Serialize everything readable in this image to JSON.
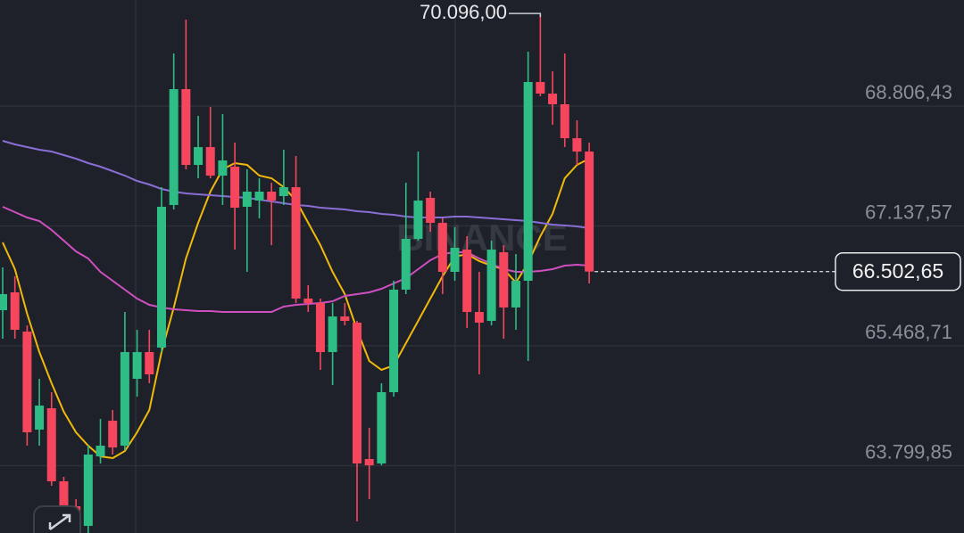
{
  "chart_data": {
    "type": "candlestick",
    "watermark": "BINANCE",
    "up_color": "#2ebd85",
    "down_color": "#f6465d",
    "grid": true,
    "ylim": [
      62863,
      70284
    ],
    "yticks": [
      {
        "value": 68806.43,
        "label": "68.806,43"
      },
      {
        "value": 67137.57,
        "label": "67.137,57"
      },
      {
        "value": 65468.71,
        "label": "65.468,71"
      },
      {
        "value": 63799.85,
        "label": "63.799,85"
      }
    ],
    "max_label": {
      "value": 70096,
      "label": "70.096,00"
    },
    "last_price": {
      "value": 66502.65,
      "label": "66.502,65"
    },
    "open": [
      65965,
      66214,
      65667,
      64302,
      64600,
      63583,
      63235,
      62962,
      63930,
      64426,
      64079,
      65010,
      65382,
      65444,
      67430,
      69043,
      67988,
      68236,
      67839,
      67963,
      67405,
      67492,
      67616,
      67554,
      67678,
      66127,
      66065,
      65382,
      65878,
      65792,
      63893,
      63831,
      64824,
      66251,
      66958,
      67529,
      67181,
      66499,
      66809,
      65940,
      65816,
      66772,
      66003,
      66375,
      69142,
      68981,
      68832,
      68360,
      68174
    ],
    "high": [
      66561,
      66437,
      65754,
      65010,
      64824,
      63645,
      63334,
      64079,
      64451,
      64575,
      65940,
      65692,
      65692,
      67678,
      69539,
      70011,
      68671,
      68795,
      68696,
      68298,
      67926,
      67802,
      67740,
      68199,
      68112,
      66313,
      66127,
      66065,
      66065,
      65816,
      64327,
      64948,
      66375,
      67740,
      68174,
      67616,
      67244,
      67119,
      66995,
      66499,
      66933,
      66871,
      66747,
      69564,
      70096,
      69291,
      69539,
      68609,
      68298
    ],
    "low": [
      65568,
      65568,
      64079,
      64079,
      63521,
      62863,
      62863,
      62863,
      63831,
      63955,
      64017,
      64762,
      64948,
      65382,
      67368,
      67926,
      67802,
      67802,
      67430,
      66809,
      66499,
      67244,
      66871,
      67430,
      66065,
      65940,
      65134,
      64923,
      65754,
      63024,
      63334,
      63806,
      64762,
      66189,
      66933,
      67057,
      66189,
      66375,
      65717,
      65072,
      65754,
      65568,
      65692,
      65258,
      68944,
      68547,
      68236,
      67988,
      66338
    ],
    "close": [
      66189,
      65692,
      64265,
      64637,
      63583,
      63210,
      62962,
      63955,
      64079,
      64054,
      65382,
      65382,
      65072,
      67405,
      69043,
      67988,
      68236,
      67839,
      68050,
      67392,
      67616,
      67616,
      67492,
      67678,
      66127,
      66065,
      65382,
      65878,
      65816,
      63831,
      63806,
      64824,
      66251,
      66958,
      67492,
      67181,
      66499,
      66834,
      65940,
      65792,
      66809,
      66003,
      66375,
      69142,
      68981,
      68832,
      68360,
      68174,
      66502.65
    ],
    "series": [
      {
        "color": "#f0b90b",
        "values": [
          66908,
          66536,
          65916,
          65382,
          64948,
          64551,
          64265,
          64079,
          63930,
          63905,
          64005,
          64265,
          64575,
          65382,
          66003,
          66685,
          67181,
          67616,
          67926,
          68013,
          67988,
          67839,
          67802,
          67678,
          67492,
          67181,
          66871,
          66499,
          66189,
          65692,
          65258,
          65134,
          65196,
          65506,
          65816,
          66127,
          66437,
          66710,
          66747,
          66648,
          66586,
          66536,
          66350,
          66623,
          66995,
          67306,
          67802,
          67988,
          68075
        ]
      },
      {
        "color": "#d04fc0",
        "values": [
          67405,
          67330,
          67256,
          67206,
          67082,
          66933,
          66784,
          66685,
          66499,
          66375,
          66251,
          66127,
          66040,
          66003,
          65978,
          65965,
          65953,
          65953,
          65940,
          65940,
          65940,
          65940,
          65940,
          66015,
          66040,
          66052,
          66065,
          66089,
          66164,
          66189,
          66214,
          66263,
          66338,
          66412,
          66536,
          66660,
          66747,
          66772,
          66772,
          66685,
          66611,
          66536,
          66499,
          66499,
          66511,
          66536,
          66586,
          66598,
          66586
        ]
      },
      {
        "color": "#8a6ed6",
        "values": [
          68323,
          68274,
          68236,
          68199,
          68174,
          68125,
          68075,
          68013,
          67963,
          67901,
          67839,
          67765,
          67715,
          67653,
          67616,
          67591,
          67579,
          67566,
          67554,
          67541,
          67529,
          67504,
          67479,
          67455,
          67430,
          67417,
          67392,
          67380,
          67368,
          67343,
          67330,
          67306,
          67293,
          67268,
          67256,
          67256,
          67256,
          67268,
          67268,
          67256,
          67244,
          67231,
          67219,
          67206,
          67181,
          67157,
          67144,
          67132,
          67107
        ]
      }
    ]
  }
}
